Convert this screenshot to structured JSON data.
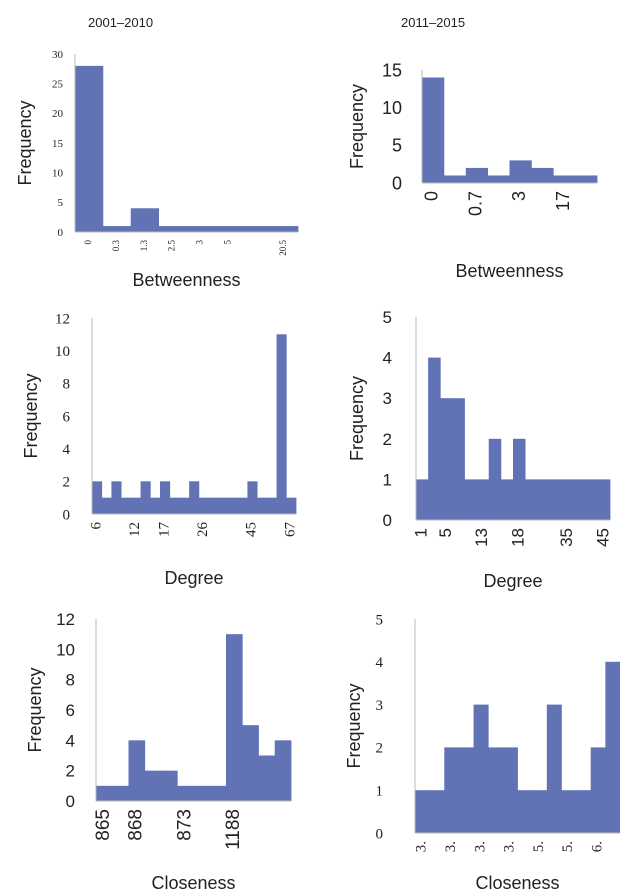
{
  "column_titles": [
    "2001–2010",
    "2011–2015"
  ],
  "bar_color": "#6172b5",
  "chart_data": [
    {
      "id": "p1",
      "type": "bar",
      "xlabel": "Betweenness",
      "ylabel": "Frequency",
      "ylim": [
        0,
        30
      ],
      "yticks": [
        0,
        5,
        10,
        15,
        20,
        25,
        30
      ],
      "values": [
        28,
        1,
        4,
        1,
        1,
        1,
        1,
        1
      ],
      "xtick_labels": [
        "0",
        "0.3",
        "1.3",
        "2.5",
        "3",
        "5",
        "20.5"
      ],
      "xtick_bins": [
        0,
        1,
        2,
        3,
        4,
        5,
        7
      ]
    },
    {
      "id": "p2",
      "type": "bar",
      "xlabel": "Betweenness",
      "ylabel": "Frequency",
      "ylim": [
        0,
        15
      ],
      "yticks": [
        0,
        5,
        10,
        15
      ],
      "values": [
        14,
        1,
        2,
        1,
        3,
        2,
        1,
        1
      ],
      "xtick_labels": [
        "0",
        "0.7",
        "3",
        "17"
      ],
      "xtick_bins": [
        0,
        2,
        4,
        6
      ]
    },
    {
      "id": "p3",
      "type": "bar",
      "xlabel": "Degree",
      "ylabel": "Frequency",
      "ylim": [
        0,
        12
      ],
      "yticks": [
        0,
        2,
        4,
        6,
        8,
        10,
        12
      ],
      "values": [
        2,
        1,
        2,
        1,
        1,
        2,
        1,
        2,
        1,
        1,
        2,
        1,
        1,
        1,
        1,
        1,
        2,
        1,
        1,
        11,
        1
      ],
      "xtick_labels": [
        "6",
        "12",
        "17",
        "26",
        "45",
        "67"
      ],
      "xtick_bins": [
        0,
        4,
        7,
        11,
        16,
        20
      ]
    },
    {
      "id": "p4",
      "type": "bar",
      "xlabel": "Degree",
      "ylabel": "Frequency",
      "ylim": [
        0,
        5
      ],
      "yticks": [
        0,
        1,
        2,
        3,
        4,
        5
      ],
      "values": [
        1,
        4,
        3,
        3,
        1,
        1,
        2,
        1,
        2,
        1,
        1,
        1,
        1,
        1,
        1,
        1
      ],
      "xtick_labels": [
        "1",
        "5",
        "13",
        "18",
        "35",
        "45"
      ],
      "xtick_bins": [
        0,
        2,
        5,
        8,
        12,
        15
      ]
    },
    {
      "id": "p5",
      "type": "bar",
      "xlabel": "Closeness",
      "ylabel": "Frequency",
      "ylim": [
        0,
        12
      ],
      "yticks": [
        0,
        2,
        4,
        6,
        8,
        10,
        12
      ],
      "values": [
        1,
        1,
        4,
        2,
        2,
        1,
        1,
        1,
        11,
        5,
        3,
        4
      ],
      "xtick_labels": [
        "865",
        "868",
        "873",
        "1188"
      ],
      "xtick_bins": [
        0,
        2,
        5,
        8
      ]
    },
    {
      "id": "p6",
      "type": "bar",
      "xlabel": "Closeness",
      "ylabel": "Frequency",
      "ylim": [
        0,
        5
      ],
      "yticks": [
        0,
        1,
        2,
        3,
        4,
        5
      ],
      "values": [
        1,
        1,
        2,
        2,
        3,
        2,
        2,
        1,
        1,
        3,
        1,
        1,
        2,
        4
      ],
      "xtick_labels": [
        "3.",
        "3.",
        "3.",
        "3.",
        "5.",
        "5.",
        "6."
      ],
      "xtick_bins": [
        0,
        2,
        4,
        6,
        8,
        10,
        12
      ]
    }
  ]
}
